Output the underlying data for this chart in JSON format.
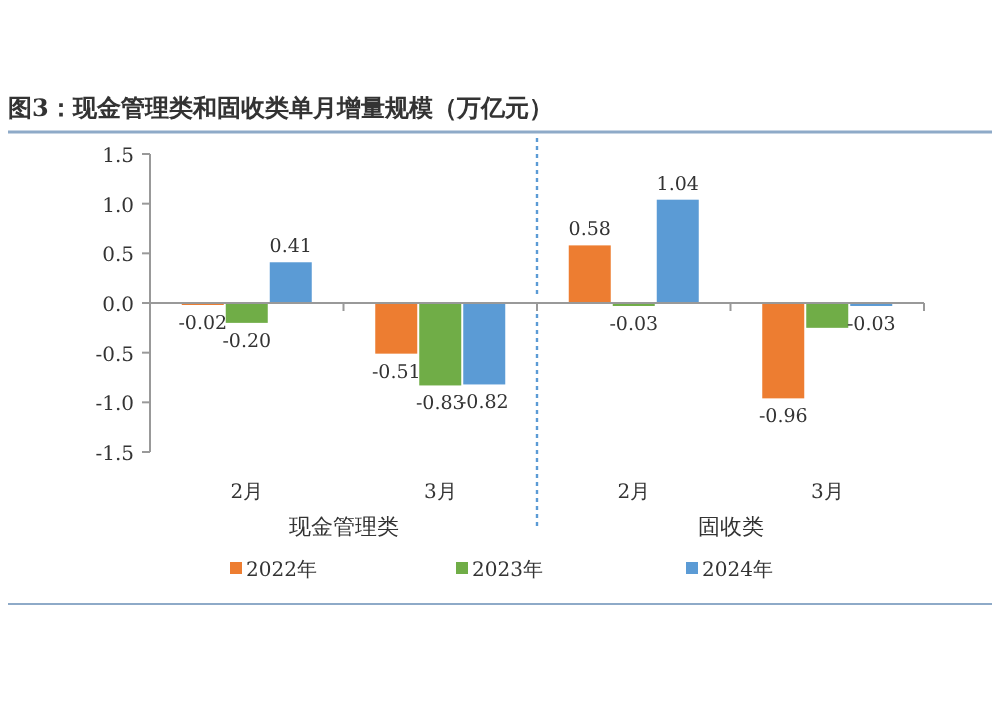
{
  "chart_data": {
    "type": "bar",
    "title": "图3：现金管理类和固收类单月增量规模（万亿元）",
    "categories": [
      "2月",
      "3月",
      "2月",
      "3月"
    ],
    "series": [
      {
        "name": "2022年",
        "color": "#ed7d31",
        "values": [
          -0.02,
          -0.51,
          0.58,
          -0.96
        ],
        "value_labels": [
          "-0.02",
          "-0.51",
          "0.58",
          "-0.96"
        ]
      },
      {
        "name": "2023年",
        "color": "#70ad47",
        "values": [
          -0.2,
          -0.83,
          -0.03,
          -0.25
        ],
        "value_labels": [
          "-0.20",
          "-0.83",
          "-0.03",
          null
        ]
      },
      {
        "name": "2024年",
        "color": "#5b9bd5",
        "values": [
          0.41,
          -0.82,
          1.04,
          -0.03
        ],
        "value_labels": [
          "0.41",
          "-0.82",
          "1.04",
          "-0.03"
        ]
      }
    ],
    "ylim": [
      -1.5,
      1.5
    ],
    "yticks": [
      {
        "value": -1.5,
        "label": "-1.5"
      },
      {
        "value": -1,
        "label": "-1.0"
      },
      {
        "value": -0.5,
        "label": "-0.5"
      },
      {
        "value": 0,
        "label": "0.0"
      },
      {
        "value": 0.5,
        "label": "0.5"
      },
      {
        "value": 1,
        "label": "1.0"
      },
      {
        "value": 1.5,
        "label": "1.5"
      }
    ],
    "annotations": [
      "现金管理类",
      "固收类"
    ],
    "legend": "bottom"
  }
}
